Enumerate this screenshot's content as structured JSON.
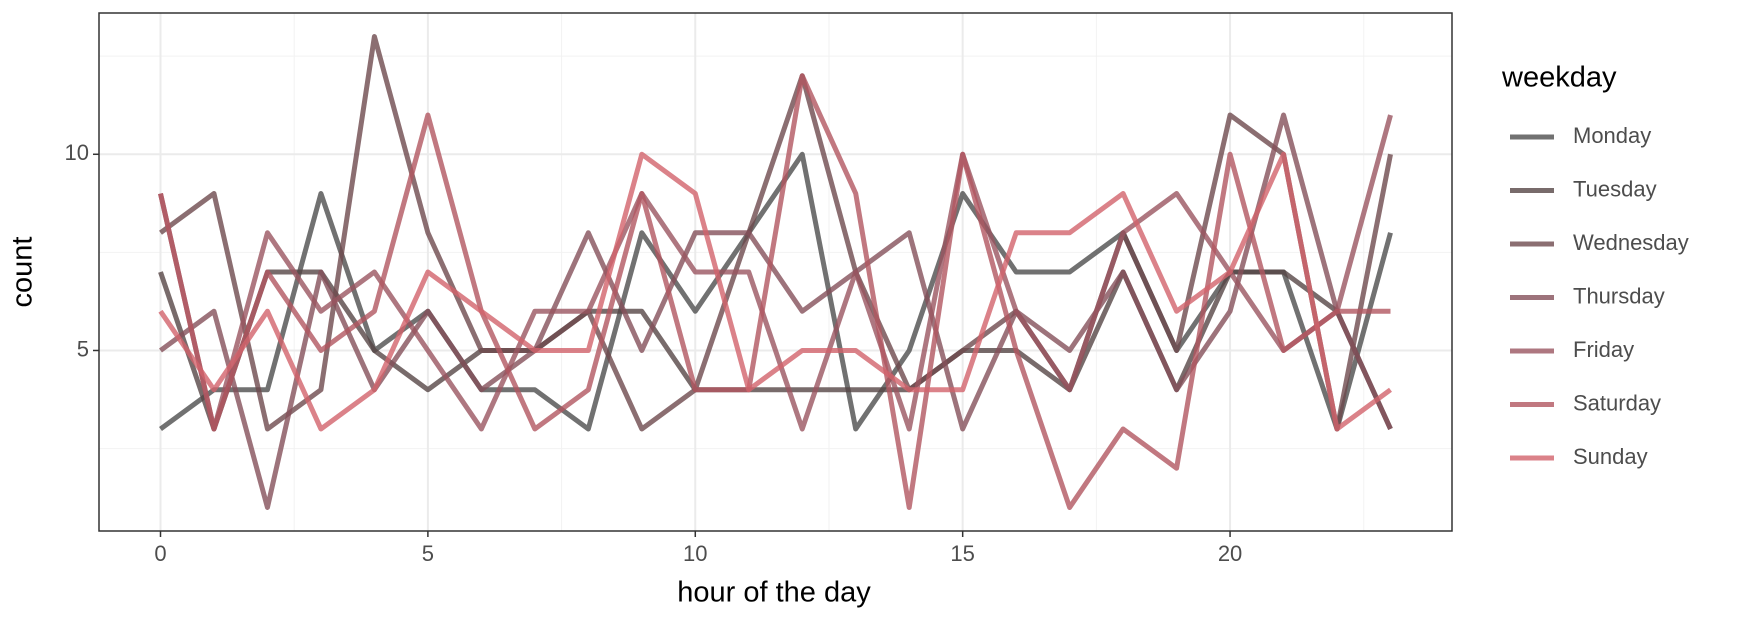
{
  "chart_data": {
    "type": "line",
    "x_label": "hour of the day",
    "y_label": "count",
    "x": [
      0,
      1,
      2,
      3,
      4,
      5,
      6,
      7,
      8,
      9,
      10,
      11,
      12,
      13,
      14,
      15,
      16,
      17,
      18,
      19,
      20,
      21,
      22,
      23
    ],
    "series": [
      {
        "name": "Monday",
        "color": "#4d4d4d",
        "values": [
          3,
          4,
          4,
          9,
          5,
          6,
          4,
          4,
          3,
          8,
          6,
          8,
          10,
          3,
          5,
          9,
          7,
          7,
          8,
          5,
          7,
          7,
          3,
          8
        ]
      },
      {
        "name": "Tuesday",
        "color": "#564646",
        "values": [
          7,
          3,
          7,
          7,
          5,
          4,
          5,
          5,
          6,
          6,
          4,
          4,
          4,
          4,
          4,
          5,
          5,
          4,
          7,
          4,
          7,
          7,
          6,
          3
        ]
      },
      {
        "name": "Wednesday",
        "color": "#6e4a4e",
        "values": [
          8,
          9,
          3,
          4,
          13,
          8,
          5,
          5,
          6,
          3,
          4,
          8,
          12,
          7,
          4,
          5,
          6,
          4,
          8,
          5,
          11,
          10,
          3,
          10
        ]
      },
      {
        "name": "Thursday",
        "color": "#85505a",
        "values": [
          5,
          6,
          1,
          7,
          4,
          6,
          4,
          5,
          8,
          5,
          8,
          8,
          6,
          7,
          8,
          3,
          6,
          5,
          7,
          4,
          6,
          11,
          6,
          3
        ]
      },
      {
        "name": "Friday",
        "color": "#9a5560",
        "values": [
          9,
          3,
          8,
          6,
          7,
          5,
          3,
          6,
          6,
          9,
          7,
          7,
          3,
          7,
          3,
          10,
          6,
          4,
          8,
          9,
          7,
          5,
          6,
          11
        ]
      },
      {
        "name": "Saturday",
        "color": "#b25660",
        "values": [
          9,
          3,
          7,
          5,
          6,
          11,
          6,
          3,
          4,
          9,
          4,
          4,
          12,
          9,
          1,
          10,
          5,
          1,
          3,
          2,
          10,
          5,
          6,
          6
        ]
      },
      {
        "name": "Sunday",
        "color": "#d2636c",
        "values": [
          6,
          4,
          6,
          3,
          4,
          7,
          6,
          5,
          5,
          10,
          9,
          4,
          5,
          5,
          4,
          4,
          8,
          8,
          9,
          6,
          7,
          10,
          3,
          4
        ]
      }
    ],
    "xlim": [
      -1.15,
      24.15
    ],
    "ylim": [
      0.4,
      13.6
    ],
    "xticks": [
      0,
      5,
      10,
      15,
      20
    ],
    "yticks": [
      5,
      10
    ],
    "grid": true,
    "legend_title": "weekday",
    "legend_position": "right"
  }
}
